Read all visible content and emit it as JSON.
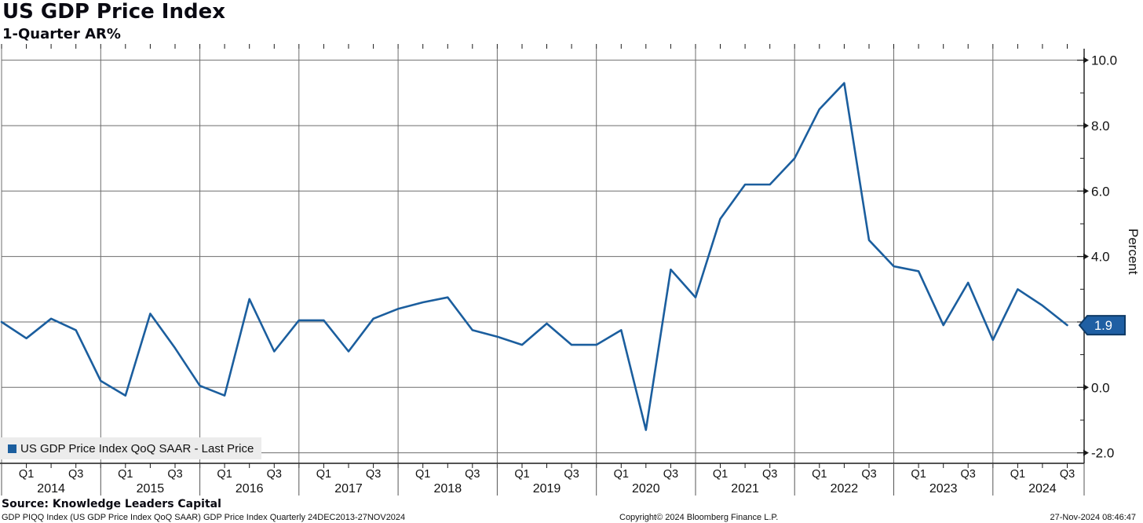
{
  "header": {
    "title": "US GDP Price Index",
    "subtitle": "1-Quarter AR%"
  },
  "legend": {
    "label": "US GDP Price Index QoQ SAAR - Last Price"
  },
  "y_axis": {
    "label": "Percent",
    "major_tick_labels": [
      "10.0",
      "8.0",
      "6.0",
      "4.0",
      "2.0",
      "0.0",
      "-2.0"
    ],
    "last_price_label": "1.9"
  },
  "x_axis": {
    "q1_label": "Q1",
    "q3_label": "Q3",
    "years": [
      "2014",
      "2015",
      "2016",
      "2017",
      "2018",
      "2019",
      "2020",
      "2021",
      "2022",
      "2023",
      "2024"
    ]
  },
  "footer": {
    "source": "Source: Knowledge Leaders Capital",
    "description": "GDP PIQQ Index (US GDP Price Index QoQ SAAR) GDP Price Index  Quarterly 24DEC2013-27NOV2024",
    "copyright": "Copyright© 2024 Bloomberg Finance L.P.",
    "timestamp": "27-Nov-2024 08:46:47"
  },
  "colors": {
    "line": "#1b5e9e",
    "grid": "#6e6e6e",
    "axis": "#1a1a1a",
    "text": "#111111",
    "badge_fill": "#1f5fa3",
    "badge_border": "#0e3a66",
    "legend_bg": "#ececec"
  },
  "chart_data": {
    "type": "line",
    "title": "US GDP Price Index",
    "subtitle": "1-Quarter AR%",
    "ylabel": "Percent",
    "ylim": [
      -2.3,
      10.35
    ],
    "y_major_ticks": [
      10,
      8,
      6,
      4,
      2,
      0,
      -2
    ],
    "y_minor_ticks": [
      9,
      7,
      5,
      3,
      1,
      -1
    ],
    "grid": true,
    "legend_position": "bottom-left",
    "last_price": 1.9,
    "x": [
      "Q4 2013",
      "Q1 2014",
      "Q2 2014",
      "Q3 2014",
      "Q4 2014",
      "Q1 2015",
      "Q2 2015",
      "Q3 2015",
      "Q4 2015",
      "Q1 2016",
      "Q2 2016",
      "Q3 2016",
      "Q4 2016",
      "Q1 2017",
      "Q2 2017",
      "Q3 2017",
      "Q4 2017",
      "Q1 2018",
      "Q2 2018",
      "Q3 2018",
      "Q4 2018",
      "Q1 2019",
      "Q2 2019",
      "Q3 2019",
      "Q4 2019",
      "Q1 2020",
      "Q2 2020",
      "Q3 2020",
      "Q4 2020",
      "Q1 2021",
      "Q2 2021",
      "Q3 2021",
      "Q4 2021",
      "Q1 2022",
      "Q2 2022",
      "Q3 2022",
      "Q4 2022",
      "Q1 2023",
      "Q2 2023",
      "Q3 2023",
      "Q4 2023",
      "Q1 2024",
      "Q2 2024",
      "Q3 2024"
    ],
    "series": [
      {
        "name": "US GDP Price Index QoQ SAAR - Last Price",
        "color": "#1b5e9e",
        "values": [
          2.0,
          1.5,
          2.1,
          1.75,
          0.2,
          -0.25,
          2.25,
          1.2,
          0.05,
          -0.25,
          2.7,
          1.1,
          2.05,
          2.05,
          1.1,
          2.1,
          2.4,
          2.6,
          2.75,
          1.75,
          1.55,
          1.3,
          1.95,
          1.3,
          1.3,
          1.75,
          -1.3,
          3.6,
          2.75,
          5.15,
          6.2,
          6.2,
          7.0,
          8.5,
          9.3,
          4.5,
          3.7,
          3.55,
          1.9,
          3.2,
          1.45,
          3.0,
          2.5,
          1.9
        ]
      }
    ]
  }
}
